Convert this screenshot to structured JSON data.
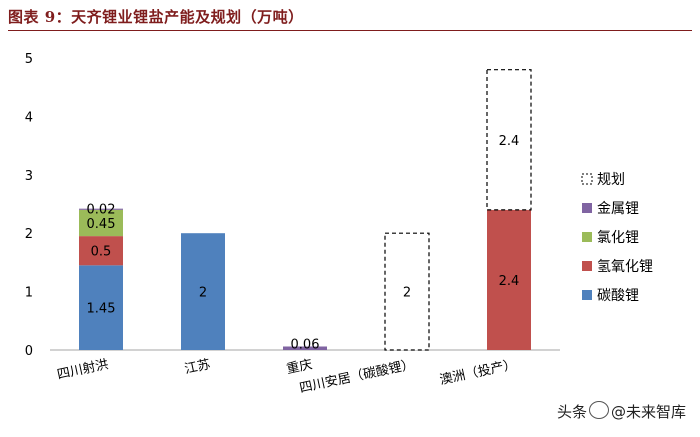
{
  "title": "图表 9：天齐锂业锂盐产能及规划（万吨）",
  "watermark": {
    "prefix": "头条",
    "handle": "@未来智库"
  },
  "chart_data": {
    "type": "bar",
    "stacked": true,
    "title": "图表 9：天齐锂业锂盐产能及规划（万吨）",
    "xlabel": "",
    "ylabel": "",
    "ylim": [
      0,
      5
    ],
    "yticks": [
      0,
      1,
      2,
      3,
      4,
      5
    ],
    "grid": false,
    "legend_position": "right",
    "categories": [
      "四川射洪",
      "江苏",
      "重庆",
      "四川安居（碳酸锂）",
      "澳洲（投产）"
    ],
    "series": [
      {
        "name": "碳酸锂",
        "color": "#4f81bd",
        "style": "solid",
        "values": [
          1.45,
          2,
          0,
          0,
          0
        ]
      },
      {
        "name": "氢氧化锂",
        "color": "#c0504d",
        "style": "solid",
        "values": [
          0.5,
          0,
          0,
          0,
          2.4
        ]
      },
      {
        "name": "氯化锂",
        "color": "#9bbb59",
        "style": "solid",
        "values": [
          0.45,
          0,
          0,
          0,
          0
        ]
      },
      {
        "name": "金属锂",
        "color": "#8064a2",
        "style": "solid",
        "values": [
          0.02,
          0,
          0.06,
          0,
          0
        ]
      },
      {
        "name": "规划",
        "color": "#000000",
        "style": "dashed",
        "values": [
          0,
          0,
          0,
          2,
          2.4
        ]
      }
    ],
    "legend_order": [
      "规划",
      "金属锂",
      "氯化锂",
      "氢氧化锂",
      "碳酸锂"
    ],
    "data_labels": [
      [
        "1.45",
        "0.5",
        "0.45",
        "0.02",
        ""
      ],
      [
        "2",
        "",
        "",
        "",
        ""
      ],
      [
        "",
        "",
        "",
        "0.06",
        ""
      ],
      [
        "",
        "",
        "",
        "",
        "2"
      ],
      [
        "",
        "2.4",
        "",
        "",
        "2.4"
      ]
    ]
  }
}
